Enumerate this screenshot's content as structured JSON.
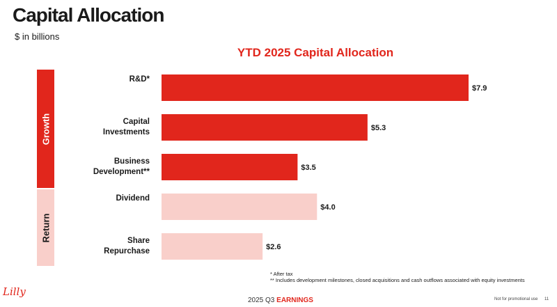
{
  "header": {
    "title": "Capital Allocation",
    "subtitle": "$ in billions"
  },
  "chart_data": {
    "type": "bar",
    "orientation": "horizontal",
    "title": "YTD 2025 Capital Allocation",
    "unit": "$ in billions",
    "categories": [
      "R&D*",
      "Capital Investments",
      "Business Development**",
      "Dividend",
      "Share Repurchase"
    ],
    "category_lines": [
      [
        "R&D*"
      ],
      [
        "Capital",
        "Investments"
      ],
      [
        "Business",
        "Development**"
      ],
      [
        "Dividend"
      ],
      [
        "Share",
        "Repurchase"
      ]
    ],
    "values": [
      7.9,
      5.3,
      3.5,
      4.0,
      2.6
    ],
    "data_labels": [
      "$7.9",
      "$5.3",
      "$3.5",
      "$4.0",
      "$2.6"
    ],
    "groups": [
      {
        "name": "Growth",
        "categories": [
          "R&D*",
          "Capital Investments",
          "Business Development**"
        ],
        "color": "#e1261c"
      },
      {
        "name": "Return",
        "categories": [
          "Dividend",
          "Share Repurchase"
        ],
        "color": "#f9cfca"
      }
    ],
    "xlim": [
      0,
      7.9
    ],
    "grid": false,
    "legend": "none"
  },
  "footnotes": [
    "* After tax",
    "** Includes development milestones, closed acquisitions and cash outflows associated with equity investments"
  ],
  "footer": {
    "logo": "Lilly",
    "period": "2025 Q3",
    "earnings": "EARNINGS",
    "disclaimer": "Not for promotional use",
    "page": "11"
  },
  "colors": {
    "accent_red": "#e1261c",
    "light_pink": "#f9cfca",
    "text": "#1a1a1a"
  }
}
